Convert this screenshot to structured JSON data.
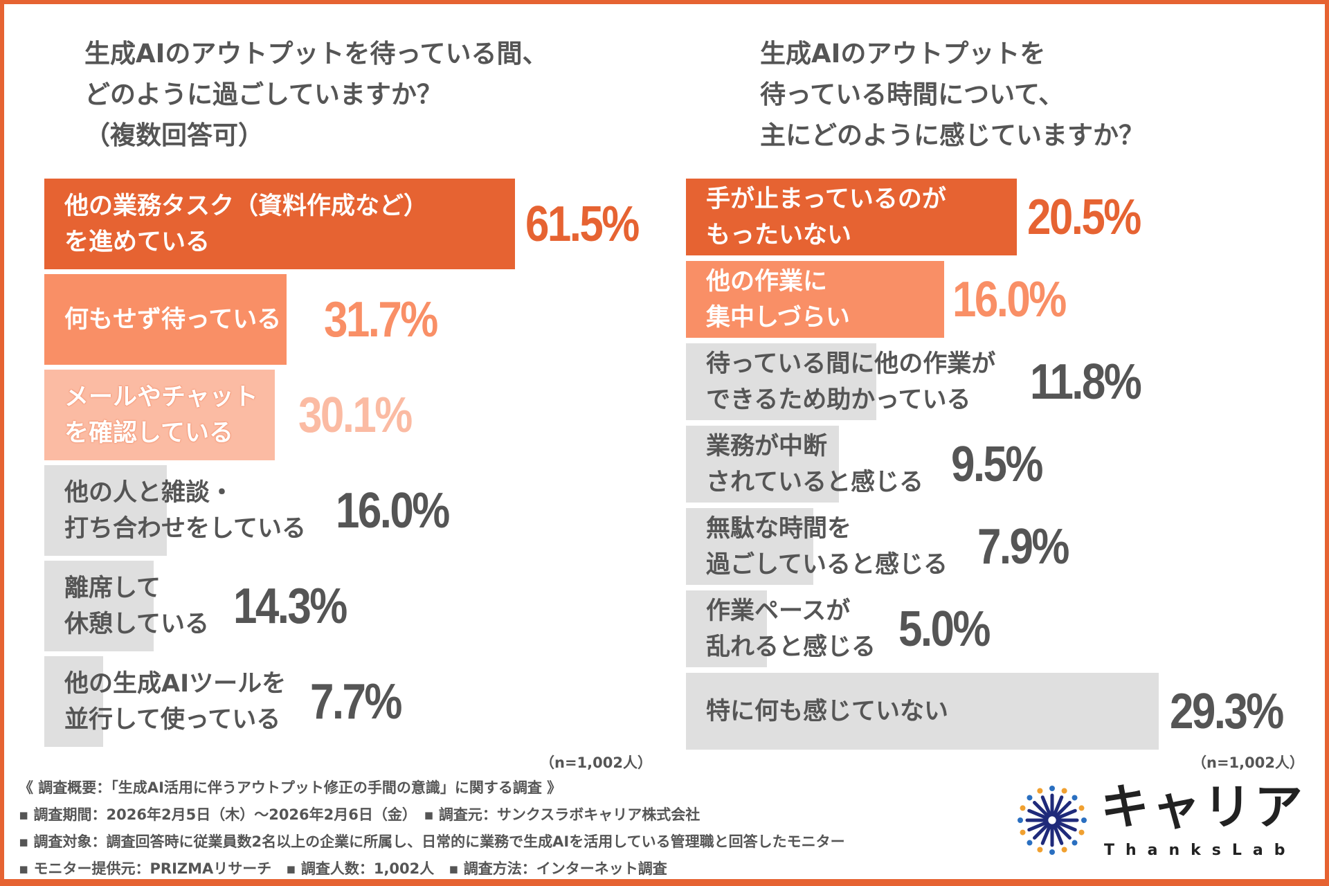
{
  "chart_data": [
    {
      "type": "bar",
      "orientation": "horizontal",
      "title": "生成AIのアウトプットを待っている間、\nどのように過ごしていますか？\n（複数回答可）",
      "categories": [
        "他の業務タスク（資料作成など）\nを進めている",
        "何もせず待っている",
        "メールやチャット\nを確認している",
        "他の人と雑談・\n打ち合わせをしている",
        "離席して\n休憩している",
        "他の生成AIツールを\n並行して使っている"
      ],
      "values": [
        61.5,
        31.7,
        30.1,
        16.0,
        14.3,
        7.7
      ],
      "labels": [
        "61.5%",
        "31.7%",
        "30.1%",
        "16.0%",
        "14.3%",
        "7.7%"
      ],
      "colors": [
        "#E66332",
        "#F98F66",
        "#FBBBA3",
        "#DFDFDF",
        "#DFDFDF",
        "#DFDFDF"
      ],
      "note": "（n=1,002人）"
    },
    {
      "type": "bar",
      "orientation": "horizontal",
      "title": "生成AIのアウトプットを\n待っている時間について、\n主にどのように感じていますか？",
      "categories": [
        "手が止まっているのが\nもったいない",
        "他の作業に\n集中しづらい",
        "待っている間に他の作業が\nできるため助かっている",
        "業務が中断\nされていると感じる",
        "無駄な時間を\n過ごしていると感じる",
        "作業ペースが\n乱れると感じる",
        "特に何も感じていない"
      ],
      "values": [
        20.5,
        16.0,
        11.8,
        9.5,
        7.9,
        5.0,
        29.3
      ],
      "labels": [
        "20.5%",
        "16.0%",
        "11.8%",
        "9.5%",
        "7.9%",
        "5.0%",
        "29.3%"
      ],
      "colors": [
        "#E66332",
        "#F98F66",
        "#DFDFDF",
        "#DFDFDF",
        "#DFDFDF",
        "#DFDFDF",
        "#DFDFDF"
      ],
      "note": "（n=1,002人）"
    }
  ],
  "footer": {
    "summary": "《 調査概要：「生成AI活用に伴うアウトプット修正の手間の意識」に関する調査 》",
    "line1": "▪ 調査期間：2026年2月5日（木）～2026年2月6日（金）　▪ 調査元：サンクスラボキャリア株式会社",
    "line2": "▪ 調査対象：調査回答時に従業員数2名以上の企業に所属し、日常的に業務で生成AIを活用している管理職と回答したモニター",
    "line3": "▪ モニター提供元：PRIZMAリサーチ　▪ 調査人数：1,002人　▪ 調査方法：インターネット調査"
  },
  "logo": {
    "word": "キャリア",
    "sub": "ThanksLab",
    "colors": [
      "#1F2A7A",
      "#F0A030",
      "#2A6FC0"
    ]
  }
}
